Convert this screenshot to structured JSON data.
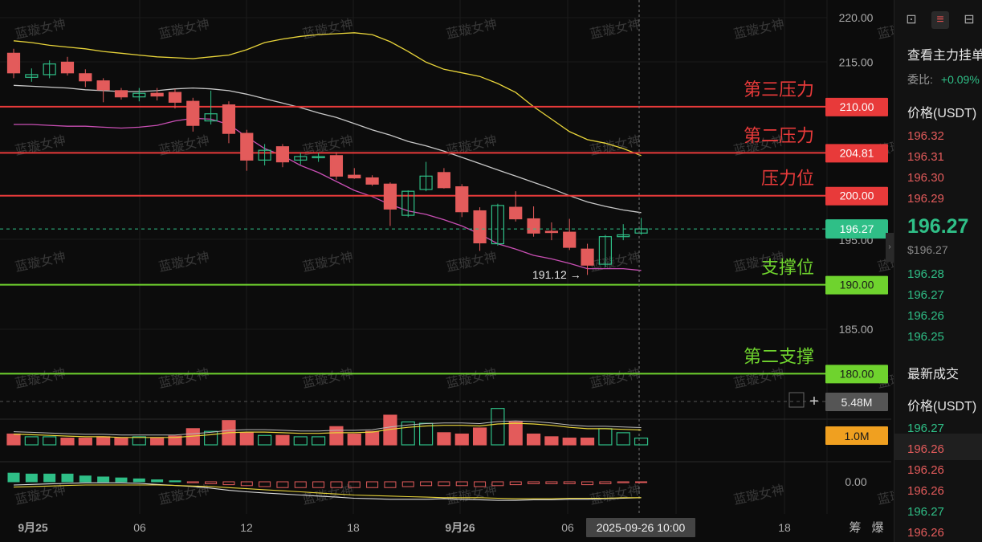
{
  "chart_data": {
    "type": "candlestick",
    "watermark": "蓝璇女神",
    "price_axis": {
      "min": 180,
      "max": 222,
      "ticks": [
        "220.00",
        "215.00",
        "195.00",
        "185.00"
      ]
    },
    "time_axis": {
      "labels": [
        "9月25",
        "06",
        "12",
        "18",
        "9月26",
        "06",
        "12",
        "18"
      ],
      "cursor_time": "2025-09-26 10:00",
      "right_icons": [
        "筹",
        "爆"
      ]
    },
    "levels": [
      {
        "name": "第三压力",
        "value": 210.0,
        "label": "210.00",
        "color": "#e83a3a"
      },
      {
        "name": "第二压力",
        "value": 204.81,
        "label": "204.81",
        "color": "#e83a3a"
      },
      {
        "name": "压力位",
        "value": 200.0,
        "label": "200.00",
        "color": "#e83a3a"
      },
      {
        "name": "支撑位",
        "value": 190.0,
        "label": "190.00",
        "color": "#6fd32e"
      },
      {
        "name": "第二支撑",
        "value": 180.0,
        "label": "180.00",
        "color": "#6fd32e"
      }
    ],
    "current_price": {
      "value": 196.27,
      "label": "196.27",
      "color": "#2fbf87"
    },
    "low_marker": {
      "value": 191.12,
      "label": "191.12 →"
    },
    "candles": [
      {
        "o": 216,
        "h": 216.5,
        "l": 213.2,
        "c": 213.8
      },
      {
        "o": 213.3,
        "h": 214.3,
        "l": 212.8,
        "c": 213.6
      },
      {
        "o": 213.6,
        "h": 215.2,
        "l": 213.2,
        "c": 214.8
      },
      {
        "o": 215,
        "h": 215.6,
        "l": 213.5,
        "c": 213.8
      },
      {
        "o": 213.7,
        "h": 214.2,
        "l": 212.2,
        "c": 212.9
      },
      {
        "o": 212.9,
        "h": 213.2,
        "l": 210.5,
        "c": 211.9
      },
      {
        "o": 211.8,
        "h": 212.1,
        "l": 210.8,
        "c": 211.1
      },
      {
        "o": 211.1,
        "h": 212.1,
        "l": 210.6,
        "c": 211.5
      },
      {
        "o": 211.5,
        "h": 212.1,
        "l": 210.7,
        "c": 211.2
      },
      {
        "o": 211.6,
        "h": 212.0,
        "l": 209.8,
        "c": 210.5
      },
      {
        "o": 210.6,
        "h": 211.0,
        "l": 207.2,
        "c": 207.9
      },
      {
        "o": 208.4,
        "h": 211.8,
        "l": 208.0,
        "c": 209.2
      },
      {
        "o": 210.2,
        "h": 210.6,
        "l": 205.9,
        "c": 207.0
      },
      {
        "o": 207.0,
        "h": 207.4,
        "l": 202.8,
        "c": 204.0
      },
      {
        "o": 204.0,
        "h": 205.8,
        "l": 203.4,
        "c": 205.1
      },
      {
        "o": 205.5,
        "h": 205.8,
        "l": 203.2,
        "c": 203.8
      },
      {
        "o": 204.0,
        "h": 204.8,
        "l": 203.5,
        "c": 204.4
      },
      {
        "o": 204.3,
        "h": 204.8,
        "l": 203.8,
        "c": 204.4
      },
      {
        "o": 204.5,
        "h": 204.9,
        "l": 201.8,
        "c": 202.2
      },
      {
        "o": 202.3,
        "h": 203.1,
        "l": 201.9,
        "c": 202.0
      },
      {
        "o": 202.0,
        "h": 202.3,
        "l": 201.1,
        "c": 201.3
      },
      {
        "o": 201.3,
        "h": 201.5,
        "l": 196.6,
        "c": 198.5
      },
      {
        "o": 197.8,
        "h": 200.6,
        "l": 197.6,
        "c": 200.5
      },
      {
        "o": 200.7,
        "h": 203.8,
        "l": 200.5,
        "c": 202.2
      },
      {
        "o": 202.6,
        "h": 203.1,
        "l": 200.8,
        "c": 200.9
      },
      {
        "o": 201.0,
        "h": 201.3,
        "l": 197.6,
        "c": 198.2
      },
      {
        "o": 198.3,
        "h": 198.7,
        "l": 193.8,
        "c": 194.7
      },
      {
        "o": 194.6,
        "h": 199.1,
        "l": 194.4,
        "c": 198.9
      },
      {
        "o": 198.7,
        "h": 200.5,
        "l": 197.1,
        "c": 197.4
      },
      {
        "o": 197.4,
        "h": 198.8,
        "l": 195.4,
        "c": 195.8
      },
      {
        "o": 196.0,
        "h": 197.0,
        "l": 195.0,
        "c": 195.9
      },
      {
        "o": 195.9,
        "h": 197.4,
        "l": 193.9,
        "c": 194.2
      },
      {
        "o": 194.0,
        "h": 194.6,
        "l": 191.1,
        "c": 192.2
      },
      {
        "o": 192.3,
        "h": 195.6,
        "l": 192.0,
        "c": 195.4
      },
      {
        "o": 195.4,
        "h": 196.8,
        "l": 195.0,
        "c": 195.6
      },
      {
        "o": 195.8,
        "h": 197.5,
        "l": 195.6,
        "c": 196.27
      }
    ],
    "upper_band": [
      217.4,
      217.2,
      216.9,
      216.7,
      216.5,
      216.2,
      216.0,
      215.8,
      215.6,
      215.5,
      215.4,
      215.6,
      215.8,
      216.4,
      217.2,
      217.6,
      217.9,
      218.1,
      218.2,
      218.3,
      218.1,
      217.3,
      216.2,
      215.0,
      214.2,
      213.8,
      213.4,
      212.6,
      211.6,
      210.0,
      208.6,
      207.2,
      206.3,
      205.9,
      205.3,
      204.5
    ],
    "middle_band": [
      212.4,
      212.3,
      212.2,
      212.1,
      211.9,
      211.8,
      211.7,
      211.7,
      211.8,
      212.0,
      212.1,
      212.0,
      211.8,
      211.4,
      210.9,
      210.4,
      209.9,
      209.3,
      208.8,
      208.1,
      207.4,
      206.8,
      206.1,
      205.6,
      205.0,
      204.3,
      203.6,
      202.9,
      202.2,
      201.5,
      200.8,
      200.0,
      199.3,
      198.8,
      198.4,
      198.1
    ],
    "lower_band": [
      208.0,
      208.0,
      207.9,
      207.8,
      207.8,
      207.7,
      207.6,
      207.7,
      207.9,
      208.4,
      208.7,
      208.6,
      208.0,
      206.6,
      205.3,
      204.5,
      203.4,
      202.6,
      201.6,
      200.6,
      199.9,
      199.0,
      198.3,
      197.9,
      197.3,
      196.6,
      195.7,
      194.6,
      194.0,
      193.3,
      192.9,
      192.4,
      191.8,
      191.8,
      191.8,
      191.6
    ],
    "volume": {
      "max_value": 5.48,
      "label_max": "5.48M",
      "label_current": "1.0M",
      "values": [
        1.6,
        1.2,
        1.2,
        1.0,
        1.0,
        1.2,
        1.0,
        1.2,
        1.0,
        1.3,
        2.4,
        2.0,
        3.6,
        1.8,
        1.4,
        1.4,
        1.2,
        1.2,
        2.7,
        1.6,
        2.0,
        4.4,
        3.4,
        3.2,
        1.8,
        1.6,
        2.5,
        5.4,
        3.4,
        1.6,
        1.2,
        1.0,
        1.0,
        2.4,
        1.8,
        1.0
      ],
      "ma": [
        1.6,
        1.5,
        1.4,
        1.3,
        1.2,
        1.2,
        1.1,
        1.1,
        1.1,
        1.1,
        1.3,
        1.5,
        1.8,
        1.9,
        1.9,
        1.8,
        1.7,
        1.7,
        1.8,
        1.8,
        1.9,
        2.3,
        2.6,
        2.8,
        2.9,
        2.9,
        2.8,
        3.1,
        3.2,
        3.1,
        2.9,
        2.6,
        2.4,
        2.4,
        2.3,
        2.2
      ]
    },
    "macd": {
      "zero_label": "0.00",
      "hist": [
        0.9,
        0.8,
        0.8,
        0.8,
        0.6,
        0.5,
        0.4,
        0.3,
        0.2,
        0.1,
        -0.1,
        -0.2,
        -0.3,
        -0.4,
        -0.5,
        -0.6,
        -0.6,
        -0.6,
        -0.6,
        -0.6,
        -0.6,
        -0.6,
        -0.5,
        -0.4,
        -0.4,
        -0.4,
        -0.5,
        -0.4,
        -0.3,
        -0.2,
        -0.2,
        -0.2,
        -0.3,
        -0.2,
        -0.1,
        -0.05
      ],
      "dif": [
        -0.6,
        -0.5,
        -0.4,
        -0.3,
        -0.2,
        -0.2,
        -0.2,
        -0.3,
        -0.5,
        -0.7,
        -0.9,
        -1.2,
        -1.6,
        -1.9,
        -2.1,
        -2.3,
        -2.5,
        -2.7,
        -2.9,
        -3.1,
        -3.2,
        -3.3,
        -3.3,
        -3.3,
        -3.2,
        -3.3,
        -3.4,
        -3.5,
        -3.5,
        -3.4,
        -3.4,
        -3.3,
        -3.3,
        -3.2,
        -3.1,
        -3.0
      ],
      "dea": [
        -1.0,
        -0.9,
        -0.8,
        -0.7,
        -0.6,
        -0.6,
        -0.6,
        -0.6,
        -0.6,
        -0.7,
        -0.8,
        -0.9,
        -1.1,
        -1.3,
        -1.5,
        -1.7,
        -1.9,
        -2.1,
        -2.3,
        -2.5,
        -2.6,
        -2.7,
        -2.8,
        -2.9,
        -3.0,
        -3.0,
        -3.0,
        -3.1,
        -3.2,
        -3.2,
        -3.2,
        -3.1,
        -3.1,
        -3.1,
        -3.0,
        -3.0
      ],
      "range": [
        -4,
        1.5
      ]
    }
  },
  "sidebar": {
    "icons": [
      "layout-icon",
      "orderbook-icon",
      "trades-icon"
    ],
    "title": "查看主力挂单",
    "ratio_label": "委比:",
    "ratio_value": "+0.09%",
    "price_header": "价格(USDT)",
    "asks": [
      "196.32",
      "196.31",
      "196.30",
      "196.29"
    ],
    "last_price": "196.27",
    "last_price_usd": "$196.27",
    "bids": [
      "196.28",
      "196.27",
      "196.26",
      "196.25"
    ],
    "trades_title": "最新成交",
    "trades_header": "价格(USDT)",
    "trades": [
      {
        "price": "196.27",
        "side": "buy"
      },
      {
        "price": "196.26",
        "side": "sell"
      },
      {
        "price": "196.26",
        "side": "sell"
      },
      {
        "price": "196.26",
        "side": "sell"
      },
      {
        "price": "196.27",
        "side": "buy"
      },
      {
        "price": "196.26",
        "side": "sell"
      }
    ]
  },
  "colors": {
    "up": "#2fbf87",
    "down": "#e35b5b",
    "upper_band": "#e8d43a",
    "middle_band": "#c8c8c8",
    "lower_band": "#c94fb4",
    "bg": "#0c0c0c"
  }
}
